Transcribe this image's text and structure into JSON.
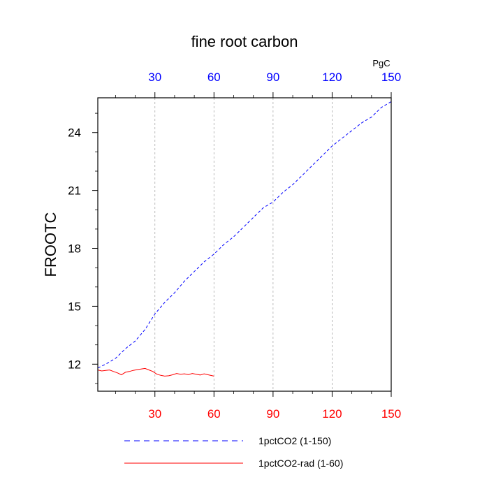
{
  "chart_data": {
    "type": "line",
    "title": "fine root carbon",
    "ylabel": "FROOTC",
    "units_label": "PgC",
    "xlim": [
      1,
      150
    ],
    "ylim": [
      10.6,
      25.8
    ],
    "x_ticks_top": [
      30,
      60,
      90,
      120,
      150
    ],
    "x_ticks_bottom": [
      30,
      60,
      90,
      120,
      150
    ],
    "y_ticks": [
      12,
      15,
      18,
      21,
      24
    ],
    "top_tick_color": "#0000ff",
    "bottom_tick_color": "#ff0000",
    "grid": "vertical dashed gray at major x ticks",
    "legend_position": "bottom",
    "series": [
      {
        "name": "1pctCO2 (1-150)",
        "color": "#0000ff",
        "dash": "dashed",
        "x": [
          1,
          5,
          10,
          15,
          20,
          25,
          30,
          35,
          40,
          45,
          50,
          55,
          60,
          65,
          70,
          75,
          80,
          85,
          90,
          95,
          100,
          105,
          110,
          115,
          120,
          125,
          130,
          135,
          140,
          145,
          150
        ],
        "y": [
          11.8,
          12.0,
          12.3,
          12.8,
          13.2,
          13.8,
          14.6,
          15.2,
          15.7,
          16.3,
          16.8,
          17.3,
          17.7,
          18.2,
          18.6,
          19.1,
          19.6,
          20.1,
          20.4,
          20.9,
          21.3,
          21.8,
          22.3,
          22.8,
          23.3,
          23.7,
          24.1,
          24.5,
          24.8,
          25.3,
          25.6
        ]
      },
      {
        "name": "1pctCO2-rad (1-60)",
        "color": "#ff0000",
        "dash": "solid",
        "x": [
          1,
          3,
          5,
          7,
          9,
          11,
          13,
          15,
          17,
          19,
          21,
          23,
          25,
          27,
          29,
          31,
          33,
          35,
          37,
          39,
          41,
          43,
          45,
          47,
          49,
          51,
          53,
          55,
          57,
          60
        ],
        "y": [
          11.7,
          11.65,
          11.68,
          11.7,
          11.62,
          11.55,
          11.45,
          11.58,
          11.62,
          11.68,
          11.72,
          11.75,
          11.78,
          11.7,
          11.62,
          11.48,
          11.42,
          11.38,
          11.4,
          11.45,
          11.52,
          11.48,
          11.5,
          11.46,
          11.52,
          11.48,
          11.44,
          11.5,
          11.45,
          11.38
        ]
      }
    ]
  }
}
